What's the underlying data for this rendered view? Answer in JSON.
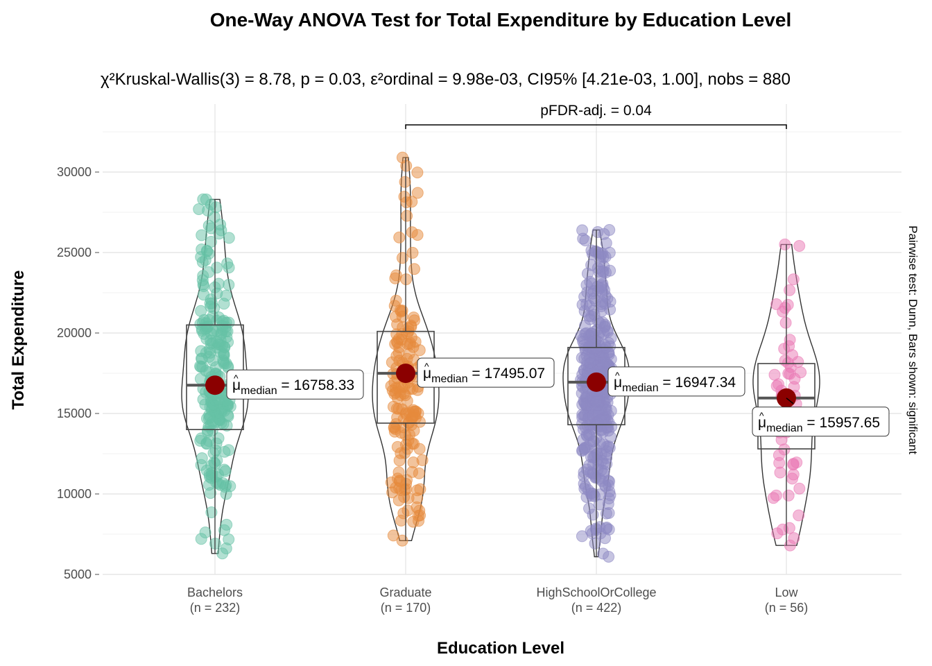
{
  "chart_data": {
    "type": "violin-box-scatter",
    "title": "One-Way ANOVA Test for Total Expenditure by Education Level",
    "subtitle": {
      "stat": "χ²Kruskal-Wallis(3) = 8.78",
      "p": "p = 0.03",
      "effsize": "ε²ordinal = 9.98e-03",
      "ci": "CI95% [4.21e-03, 1.00]",
      "n": "nobs = 880"
    },
    "xlabel": "Education Level",
    "ylabel": "Total Expenditure",
    "ylim": [
      5000,
      33000
    ],
    "yticks": [
      5000,
      10000,
      15000,
      20000,
      25000,
      30000
    ],
    "categories": [
      "Bachelors",
      "Graduate",
      "HighSchoolOrCollege",
      "Low"
    ],
    "n_labels": [
      "(n = 232)",
      "(n = 170)",
      "(n = 422)",
      "(n = 56)"
    ],
    "colors": [
      "#66C2A5",
      "#E68A3C",
      "#8D89C3",
      "#E978B4"
    ],
    "median_color": "#8B0000",
    "groups": [
      {
        "name": "Bachelors",
        "n": 232,
        "min": 6300,
        "q1": 14000,
        "median": 16758.33,
        "q3": 20500,
        "max": 28300,
        "median_label": "16758.33"
      },
      {
        "name": "Graduate",
        "n": 170,
        "min": 7100,
        "q1": 14400,
        "median": 17495.07,
        "q3": 20100,
        "max": 30900,
        "median_label": "17495.07"
      },
      {
        "name": "HighSchoolOrCollege",
        "n": 422,
        "min": 6100,
        "q1": 14300,
        "median": 16947.34,
        "q3": 19100,
        "max": 26400,
        "median_label": "16947.34"
      },
      {
        "name": "Low",
        "n": 56,
        "min": 6800,
        "q1": 12800,
        "median": 15957.65,
        "q3": 18100,
        "max": 25500,
        "median_label": "15957.65"
      }
    ],
    "median_prefix": "μ",
    "median_sub": "median",
    "pairwise": {
      "from": "Graduate",
      "to": "Low",
      "label": "pFDR-adj. = 0.04"
    },
    "caption": "Pairwise test: Dunn, Bars shown: significant",
    "grid": true
  }
}
